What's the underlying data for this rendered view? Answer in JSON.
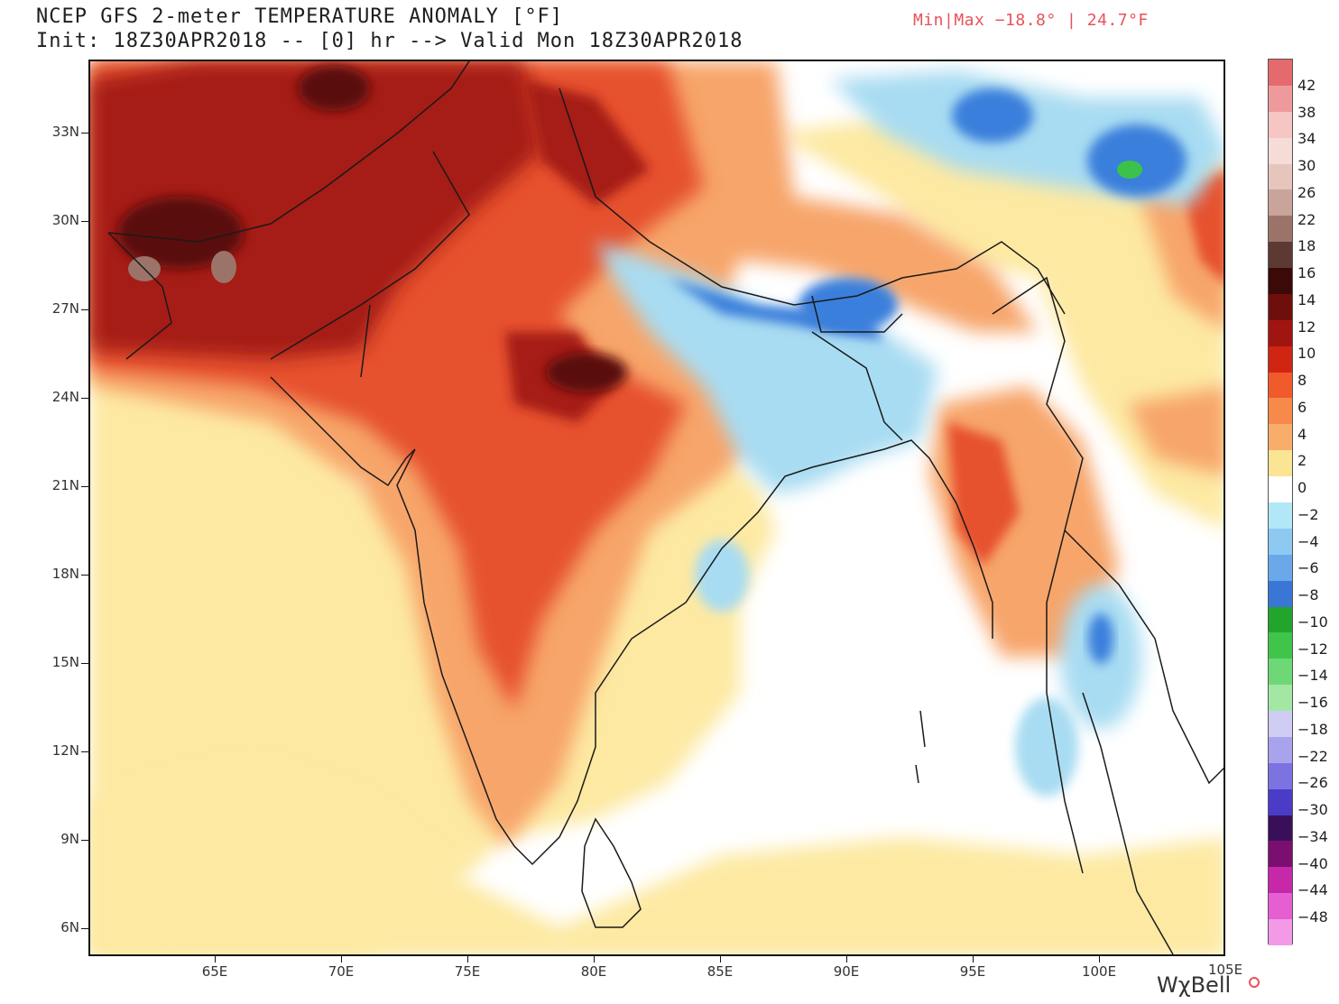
{
  "header": {
    "title_line1": "NCEP GFS 2-meter TEMPERATURE ANOMALY [°F]",
    "title_line2": "Init: 18Z30APR2018 -- [0] hr --> Valid Mon 18Z30APR2018",
    "minmax": "Min|Max −18.8° | 24.7°F"
  },
  "map": {
    "lat_labels": [
      "33N",
      "30N",
      "27N",
      "24N",
      "21N",
      "18N",
      "15N",
      "12N",
      "9N",
      "6N"
    ],
    "lon_labels": [
      "65E",
      "70E",
      "75E",
      "80E",
      "85E",
      "90E",
      "95E",
      "100E",
      "105E"
    ],
    "colors": {
      "land_outline": "#1a1a1a",
      "hot_dark": "#5a0d0b",
      "hot": "#a61d12",
      "warm": "#e6512e",
      "mild": "#f7a56a",
      "slight": "#fde9a2",
      "cool": "#a8dcf2",
      "cold": "#3b7fdc",
      "colder": "#3cc24a"
    }
  },
  "colorbar": {
    "labels": [
      "42",
      "38",
      "34",
      "30",
      "26",
      "22",
      "18",
      "16",
      "14",
      "12",
      "10",
      "8",
      "6",
      "4",
      "2",
      "0",
      "−2",
      "−4",
      "−6",
      "−8",
      "−10",
      "−12",
      "−14",
      "−16",
      "−18",
      "−22",
      "−26",
      "−30",
      "−34",
      "−40",
      "−44",
      "−48"
    ],
    "colors": [
      "#e56a6e",
      "#ee9a9c",
      "#f6c6c5",
      "#f5dcd6",
      "#e6c6bc",
      "#c9a49a",
      "#9c7368",
      "#5c3a33",
      "#3a0908",
      "#6e0f0c",
      "#a11510",
      "#cf2512",
      "#f15a2a",
      "#f7894a",
      "#f8ad6a",
      "#fbe493",
      "#ffffff",
      "#b2e7f7",
      "#8dc9f1",
      "#6aa8ea",
      "#3a76d6",
      "#23a52d",
      "#3fc54a",
      "#6ed876",
      "#a2e8a4",
      "#cfcdf3",
      "#a9a3ee",
      "#7b73e0",
      "#4b3cc8",
      "#3a0f5a",
      "#7b0f70",
      "#c628a9",
      "#e65fd2",
      "#f39ae7"
    ]
  },
  "logo": {
    "text": "WχBell"
  }
}
